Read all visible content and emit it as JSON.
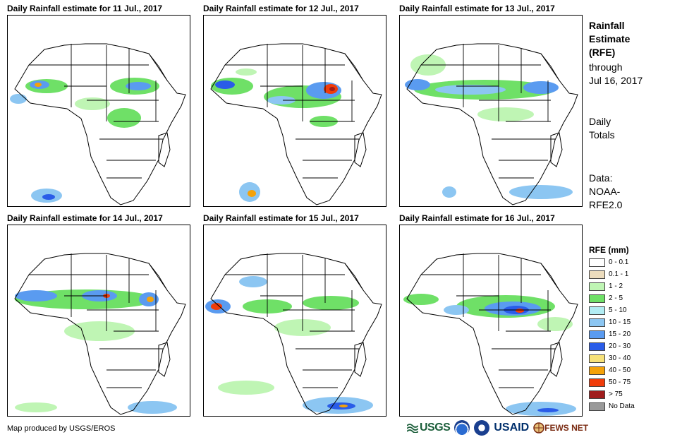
{
  "panels": [
    {
      "title": "Daily Rainfall estimate for 11 Jul., 2017"
    },
    {
      "title": "Daily Rainfall estimate for 12 Jul., 2017"
    },
    {
      "title": "Daily Rainfall estimate for 13 Jul., 2017"
    },
    {
      "title": "Daily Rainfall estimate for 14 Jul., 2017"
    },
    {
      "title": "Daily Rainfall estimate for 15 Jul., 2017"
    },
    {
      "title": "Daily Rainfall estimate for 16 Jul., 2017"
    }
  ],
  "info": {
    "title_line1": "Rainfall",
    "title_line2": "Estimate",
    "title_line3": "(RFE)",
    "through_line1": "through",
    "through_line2": "Jul 16, 2017",
    "daily_line1": "Daily",
    "daily_line2": "Totals",
    "data_line1": "Data:",
    "data_line2": "NOAA-",
    "data_line3": "RFE2.0"
  },
  "legend": {
    "title": "RFE (mm)",
    "items": [
      {
        "label": "0 - 0.1",
        "color": "#ffffff"
      },
      {
        "label": "0.1 - 1",
        "color": "#ecdcbd"
      },
      {
        "label": "1 - 2",
        "color": "#bff5b4"
      },
      {
        "label": "2 - 5",
        "color": "#6fe067"
      },
      {
        "label": "5 - 10",
        "color": "#b2ecf3"
      },
      {
        "label": "10 - 15",
        "color": "#8cc6f2"
      },
      {
        "label": "15 - 20",
        "color": "#5a9bf0"
      },
      {
        "label": "20 - 30",
        "color": "#2a5ce8"
      },
      {
        "label": "30 - 40",
        "color": "#f7e27a"
      },
      {
        "label": "40 - 50",
        "color": "#f4a20a"
      },
      {
        "label": "50 - 75",
        "color": "#f03c0a"
      },
      {
        "label": "> 75",
        "color": "#a01c1c"
      },
      {
        "label": "No Data",
        "color": "#9a9a9a"
      }
    ]
  },
  "footer": {
    "credit": "Map produced by USGS/EROS",
    "logo_usgs": "USGS",
    "logo_usaid": "USAID",
    "logo_fews": "FEWS NET"
  }
}
